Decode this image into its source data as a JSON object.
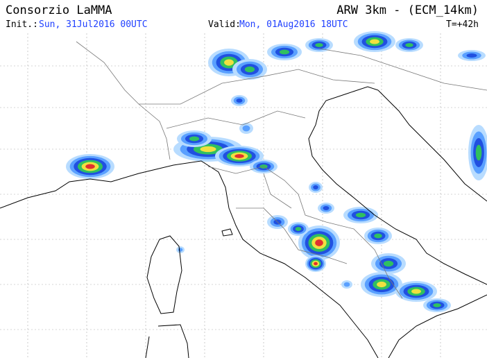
{
  "header": {
    "title": "Consorzio LaMMA",
    "model": "ARW 3km - (ECM_14km)",
    "init_label": "Init.:",
    "init_time": "Sun, 31Jul2016 00UTC",
    "valid_label": "Valid:",
    "valid_time": "Mon, 01Aug2016 18UTC",
    "lead_time": "T=+42h"
  }
}
